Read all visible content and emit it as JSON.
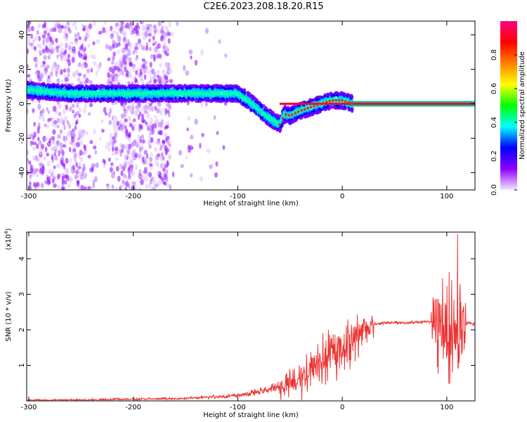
{
  "title": "C2E6.2023.208.18.20.R15",
  "chart_data": [
    {
      "type": "heatmap",
      "xlabel": "Height of straight line (km)",
      "ylabel": "Frequency (Hz)",
      "xlim": [
        -302,
        127
      ],
      "ylim": [
        -50,
        48
      ],
      "xticks": [
        -300,
        -200,
        -100,
        0,
        100
      ],
      "yticks": [
        -40,
        -20,
        0,
        20,
        40
      ],
      "colorbar": {
        "label": "Normalized spectral amplitude",
        "ticks": [
          0.0,
          0.2,
          0.4,
          0.6,
          0.8
        ],
        "range": [
          0,
          1
        ],
        "colors": [
          "#f2e6ff",
          "#8f00ff",
          "#0000ff",
          "#00ffff",
          "#00ff00",
          "#ffff00",
          "#ff8000",
          "#ff0000",
          "#ff007f"
        ]
      },
      "ridge": {
        "x": [
          -302,
          -280,
          -260,
          -240,
          -220,
          -200,
          -180,
          -160,
          -140,
          -120,
          -100,
          -90,
          -80,
          -70,
          -60,
          -55,
          -50,
          -40,
          -30,
          -20,
          -10,
          0,
          10,
          50,
          80,
          100,
          110,
          120,
          127
        ],
        "y": [
          8,
          7,
          6,
          6,
          6,
          6,
          6,
          6,
          6,
          6,
          6,
          2,
          -3,
          -8,
          -12,
          -6,
          -7,
          -4,
          -2,
          0,
          2,
          2,
          0,
          0,
          0,
          0,
          0,
          0,
          0
        ]
      }
    },
    {
      "type": "line",
      "xlabel": "Height of straight line (km)",
      "ylabel": "SNR (10 * v/v)",
      "scale_label": "(x10",
      "scale_exp": "4",
      "xlim": [
        -302,
        127
      ],
      "ylim": [
        0,
        4.75
      ],
      "xticks": [
        -300,
        -200,
        -100,
        0,
        100
      ],
      "yticks": [
        1,
        2,
        3,
        4
      ],
      "series": [
        {
          "color": "#ee3333",
          "x": [
            -302,
            -250,
            -200,
            -160,
            -130,
            -100,
            -80,
            -60,
            -45,
            -40,
            -30,
            -20,
            -10,
            0,
            10,
            20,
            30,
            40,
            50,
            60,
            70,
            80,
            90,
            95,
            100,
            105,
            108,
            110,
            112,
            115,
            120,
            127
          ],
          "y": [
            0.02,
            0.03,
            0.05,
            0.06,
            0.1,
            0.15,
            0.25,
            0.4,
            0.5,
            0.6,
            0.9,
            1.1,
            1.3,
            1.5,
            1.75,
            2.0,
            2.15,
            2.2,
            2.2,
            2.2,
            2.22,
            2.22,
            2.25,
            2.2,
            2.0,
            1.9,
            2.0,
            1.7,
            1.5,
            2.0,
            2.2,
            2.15
          ]
        }
      ]
    }
  ]
}
